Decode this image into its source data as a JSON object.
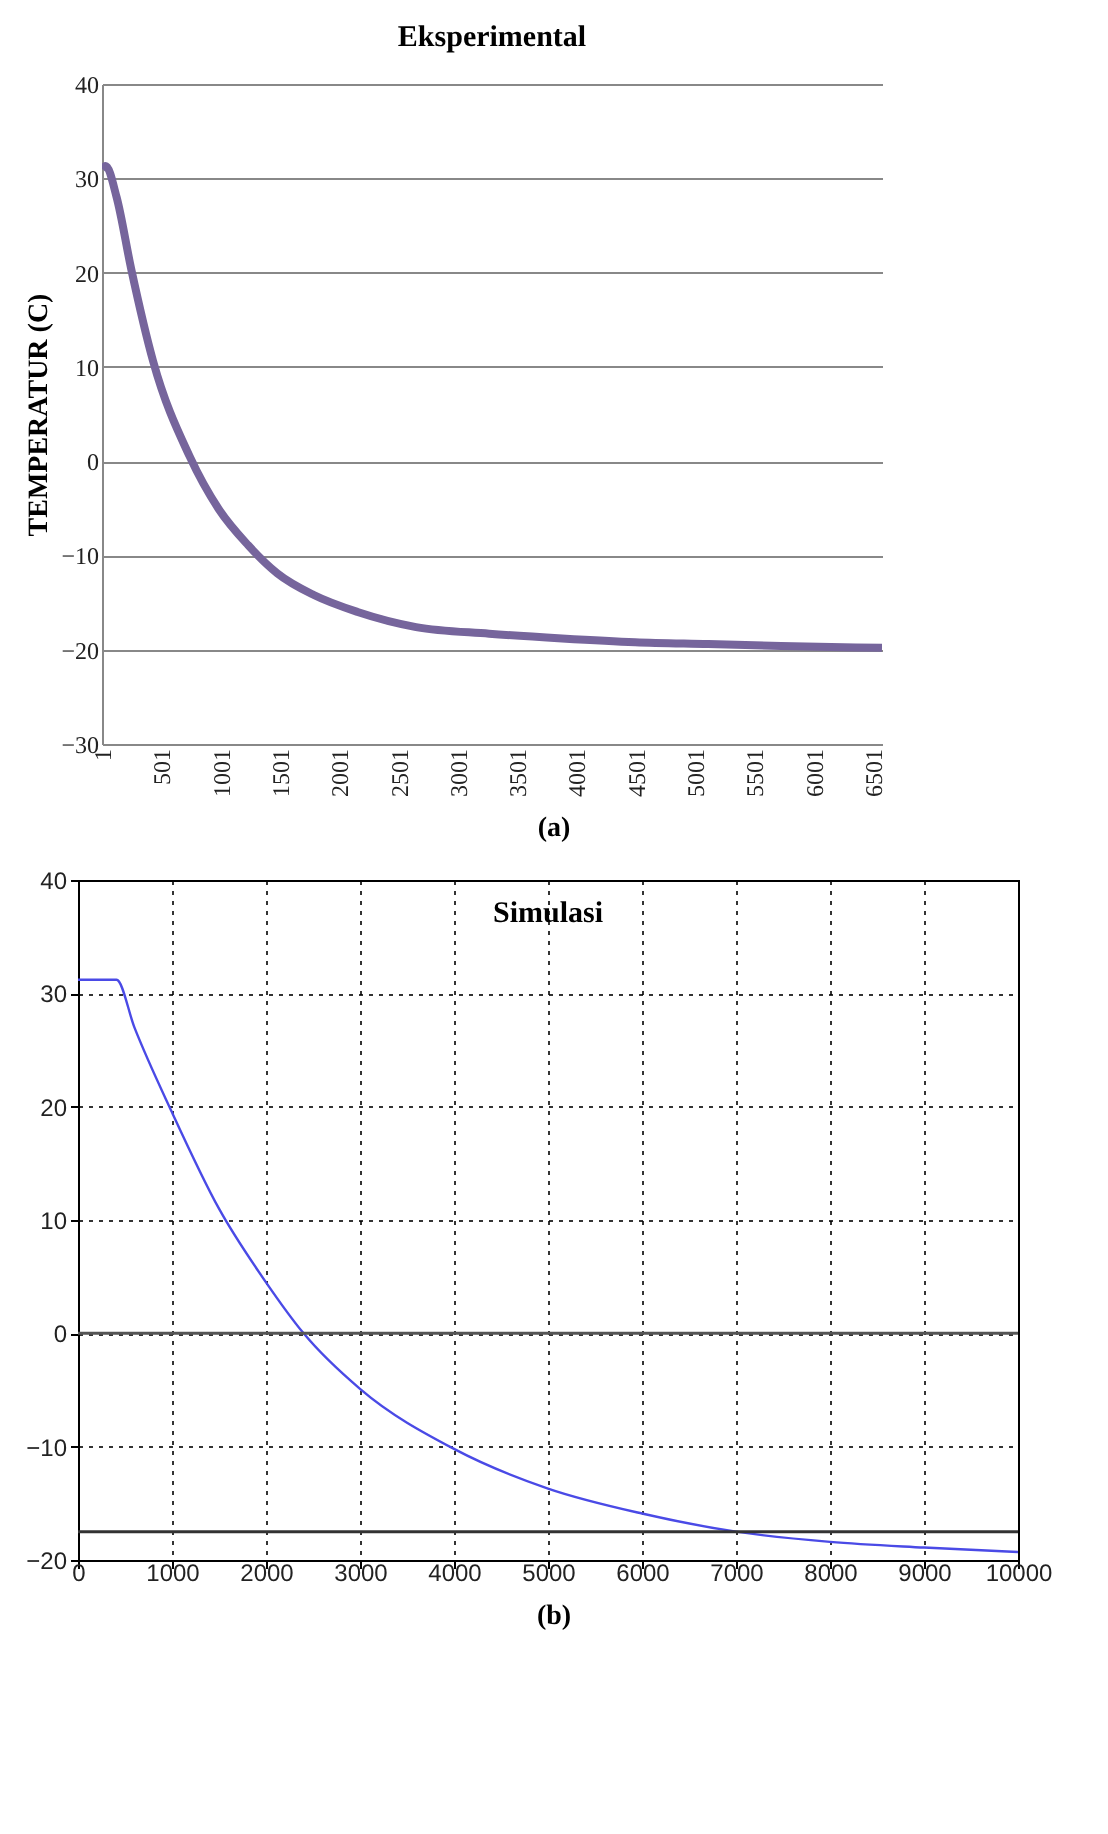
{
  "chart_data": [
    {
      "type": "line",
      "title": "Eksperimental",
      "ylabel": "TEMPERATUR (C)",
      "annotations": [
        "(a)"
      ],
      "x": [
        1,
        32,
        124,
        247,
        432,
        740,
        986,
        1232,
        1479,
        1787,
        2156,
        2649,
        3265,
        3880,
        4496,
        5112,
        5727,
        6577
      ],
      "series": [
        {
          "color": "#76659c",
          "values": [
            31,
            31.3,
            28,
            20.4,
            10.6,
            0.5,
            -5.1,
            -8.9,
            -11.9,
            -14.2,
            -16,
            -17.6,
            -18.3,
            -18.8,
            -19.2,
            -19.4,
            -19.6,
            -19.8
          ]
        }
      ],
      "xlim": [
        1,
        6577
      ],
      "xticks": [
        1,
        501,
        1001,
        1501,
        2001,
        2501,
        3001,
        3501,
        4001,
        4501,
        5001,
        5501,
        6001,
        6501
      ],
      "ylim": [
        -30,
        40
      ],
      "yticks": [
        -30,
        -20,
        -10,
        0,
        10,
        20,
        30,
        40
      ],
      "grid": "y"
    },
    {
      "type": "line",
      "title": "Simulasi",
      "annotations": [
        "(b)"
      ],
      "x": [
        0,
        410,
        600,
        1000,
        1500,
        2000,
        2400,
        3000,
        4000,
        5000,
        6000,
        7000,
        8000,
        9000,
        10000
      ],
      "series": [
        {
          "color": "#4a4ae6",
          "values": [
            31.2,
            31.2,
            27,
            19.5,
            11,
            4.5,
            0,
            -4.9,
            -10.2,
            -13.7,
            -15.9,
            -17.5,
            -18.4,
            -18.9,
            -19.3
          ]
        }
      ],
      "xlim": [
        0,
        10000
      ],
      "xticks": [
        0,
        1000,
        2000,
        3000,
        4000,
        5000,
        6000,
        7000,
        8000,
        9000,
        10000
      ],
      "ylim": [
        -20,
        40
      ],
      "yticks": [
        -20,
        -10,
        0,
        10,
        20,
        30,
        40
      ],
      "grid": true,
      "ref_lines": [
        {
          "axis": "y",
          "value": 0,
          "color": "#555555"
        },
        {
          "axis": "y",
          "value": -17.5,
          "color": "#333333"
        }
      ]
    }
  ]
}
